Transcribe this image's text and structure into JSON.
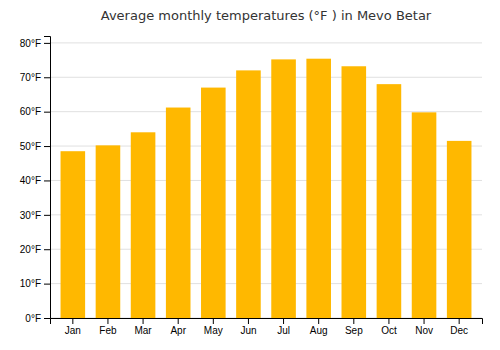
{
  "chart_data": {
    "type": "bar",
    "title": "Average monthly temperatures (°F ) in Mevo Betar",
    "categories": [
      "Jan",
      "Feb",
      "Mar",
      "Apr",
      "May",
      "Jun",
      "Jul",
      "Aug",
      "Sep",
      "Oct",
      "Nov",
      "Dec"
    ],
    "values": [
      48.5,
      50.2,
      54.0,
      61.2,
      67.0,
      72.0,
      75.2,
      75.4,
      73.2,
      68.0,
      59.8,
      51.5
    ],
    "color": "#FFB800",
    "ylim": [
      0,
      82
    ],
    "yticks": [
      {
        "value": 0,
        "label": "0°F"
      },
      {
        "value": 10,
        "label": "10°F"
      },
      {
        "value": 20,
        "label": "20°F"
      },
      {
        "value": 30,
        "label": "30°F"
      },
      {
        "value": 40,
        "label": "40°F"
      },
      {
        "value": 50,
        "label": "50°F"
      },
      {
        "value": 60,
        "label": "60°F"
      },
      {
        "value": 70,
        "label": "70°F"
      },
      {
        "value": 80,
        "label": "80°F"
      }
    ],
    "grid": true
  }
}
